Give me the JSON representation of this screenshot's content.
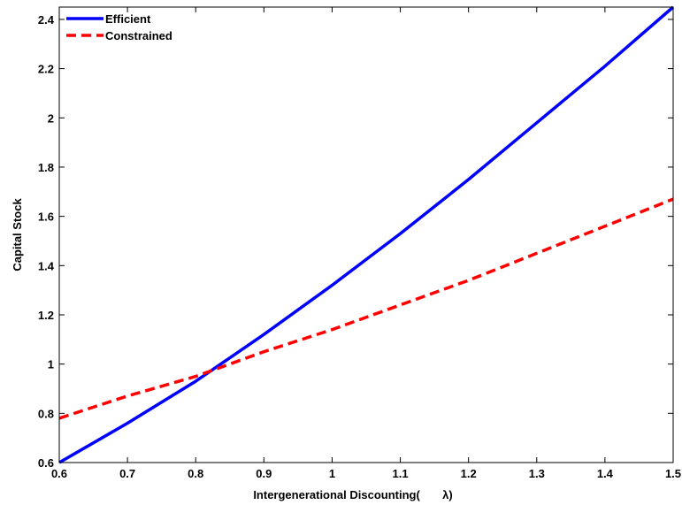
{
  "chart_data": {
    "type": "line",
    "title": "",
    "xlabel": "Intergenerational Discounting(       λ)",
    "ylabel": "Capital Stock",
    "xlim": [
      0.6,
      1.5
    ],
    "ylim": [
      0.6,
      2.45
    ],
    "xticks": [
      "0.6",
      "0.7",
      "0.8",
      "0.9",
      "1",
      "1.1",
      "1.2",
      "1.3",
      "1.4",
      "1.5"
    ],
    "yticks": [
      "0.6",
      "0.8",
      "1",
      "1.2",
      "1.4",
      "1.6",
      "1.8",
      "2",
      "2.2",
      "2.4"
    ],
    "grid": false,
    "legend_position": "top-left",
    "x": [
      0.6,
      0.7,
      0.8,
      0.9,
      1.0,
      1.1,
      1.2,
      1.3,
      1.4,
      1.5
    ],
    "series": [
      {
        "name": "Efficient",
        "color": "#0000ff",
        "style": "solid",
        "values": [
          0.6,
          0.76,
          0.93,
          1.12,
          1.32,
          1.53,
          1.75,
          1.98,
          2.21,
          2.45
        ]
      },
      {
        "name": "Constrained",
        "color": "#ff0000",
        "style": "dashed",
        "values": [
          0.78,
          0.87,
          0.95,
          1.05,
          1.14,
          1.24,
          1.34,
          1.45,
          1.56,
          1.67
        ]
      }
    ]
  }
}
